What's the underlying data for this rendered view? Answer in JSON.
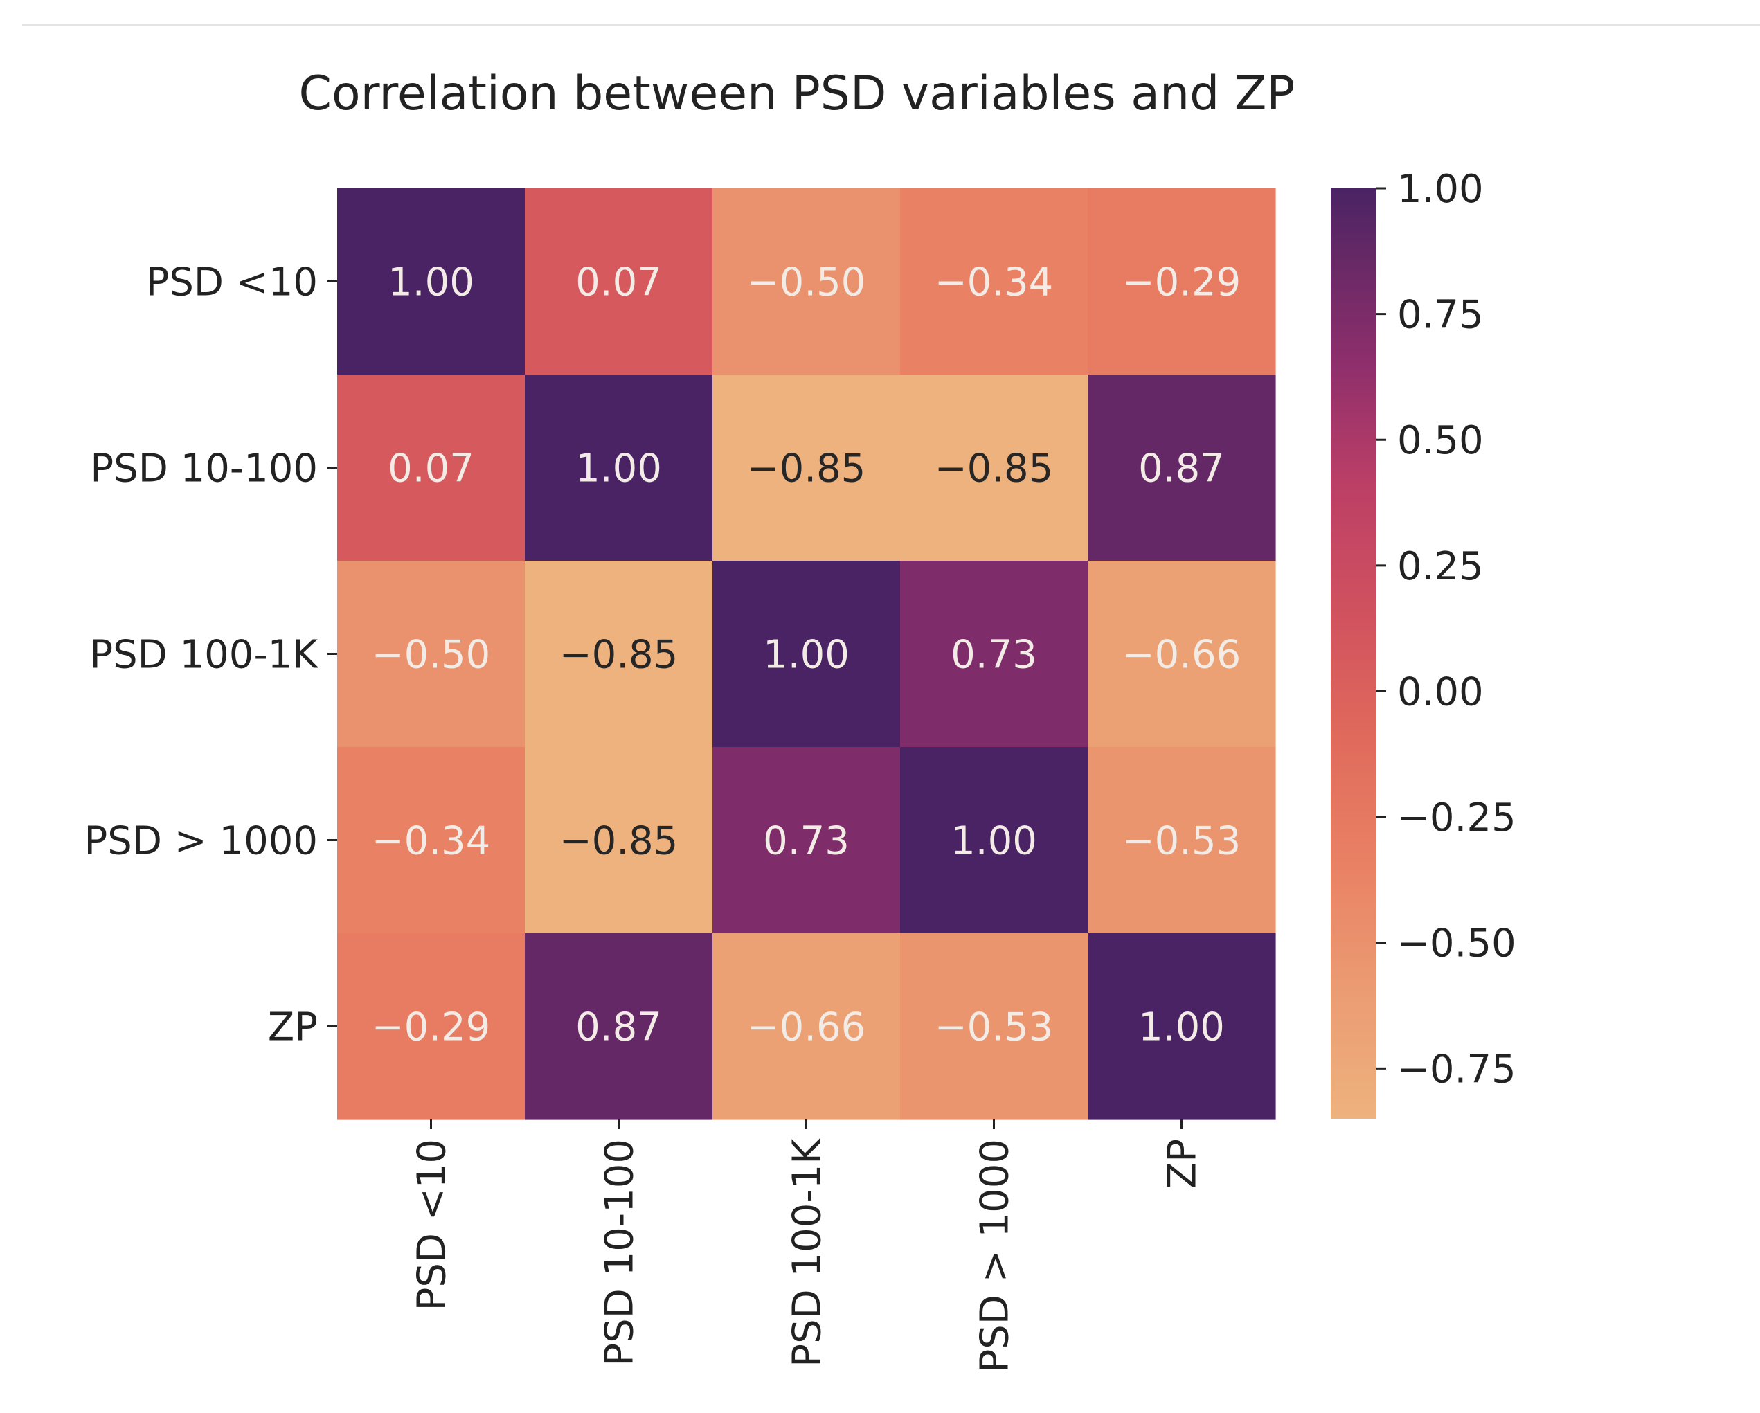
{
  "chart_data": {
    "type": "heatmap",
    "title": "Correlation between PSD variables and ZP",
    "row_labels": [
      "PSD <10",
      "PSD 10-100",
      "PSD 100-1K",
      "PSD > 1000",
      "ZP"
    ],
    "col_labels": [
      "PSD <10",
      "PSD 10-100",
      "PSD 100-1K",
      "PSD > 1000",
      "ZP"
    ],
    "values": [
      [
        1.0,
        0.07,
        -0.5,
        -0.34,
        -0.29
      ],
      [
        0.07,
        1.0,
        -0.85,
        -0.85,
        0.87
      ],
      [
        -0.5,
        -0.85,
        1.0,
        0.73,
        -0.66
      ],
      [
        -0.34,
        -0.85,
        0.73,
        1.0,
        -0.53
      ],
      [
        -0.29,
        0.87,
        -0.66,
        -0.53,
        1.0
      ]
    ],
    "annotations_format": "0.00",
    "colormap": "flare",
    "color_range": [
      -0.85,
      1.0
    ],
    "colorbar": {
      "ticks": [
        1.0,
        0.75,
        0.5,
        0.25,
        0.0,
        -0.25,
        -0.5,
        -0.75
      ],
      "tick_labels": [
        "1.00",
        "0.75",
        "0.50",
        "0.25",
        "0.00",
        "−0.25",
        "−0.50",
        "−0.75"
      ]
    },
    "cell_text": [
      [
        "1.00",
        "0.07",
        "−0.50",
        "−0.34",
        "−0.29"
      ],
      [
        "0.07",
        "1.00",
        "−0.85",
        "−0.85",
        "0.87"
      ],
      [
        "−0.50",
        "−0.85",
        "1.00",
        "0.73",
        "−0.66"
      ],
      [
        "−0.34",
        "−0.85",
        "0.73",
        "1.00",
        "−0.53"
      ],
      [
        "−0.29",
        "0.87",
        "−0.66",
        "−0.53",
        "1.00"
      ]
    ],
    "colors": {
      "high": "#4a2364",
      "low": "#eeb27e",
      "text_light": "#f3ece6",
      "text_dark": "#262626"
    }
  }
}
